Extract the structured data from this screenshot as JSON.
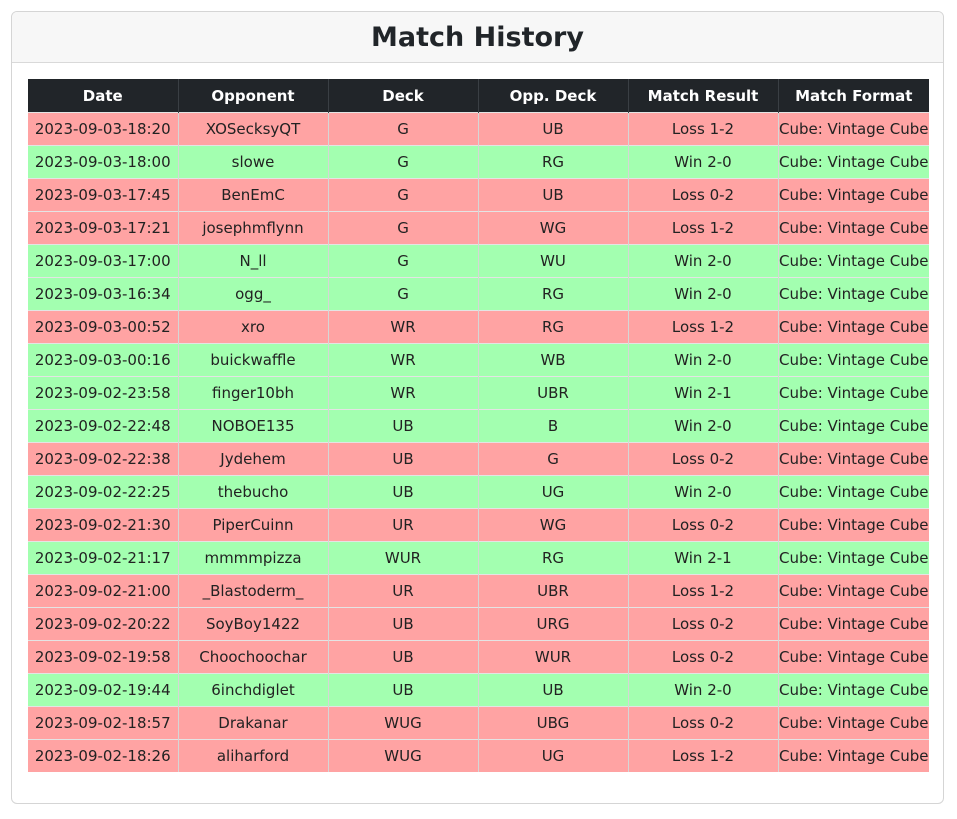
{
  "title": "Match History",
  "colors": {
    "header_bg": "#212529",
    "loss_row": "#ffa3a3",
    "win_row": "#a3ffb0"
  },
  "columns": [
    "Date",
    "Opponent",
    "Deck",
    "Opp. Deck",
    "Match Result",
    "Match Format"
  ],
  "rows": [
    {
      "date": "2023-09-03-18:20",
      "opponent": "XOSecksyQT",
      "deck": "G",
      "opp_deck": "UB",
      "result": "Loss 1-2",
      "format": "Cube: Vintage Cube",
      "outcome": "loss"
    },
    {
      "date": "2023-09-03-18:00",
      "opponent": "slowe",
      "deck": "G",
      "opp_deck": "RG",
      "result": "Win 2-0",
      "format": "Cube: Vintage Cube",
      "outcome": "win"
    },
    {
      "date": "2023-09-03-17:45",
      "opponent": "BenEmC",
      "deck": "G",
      "opp_deck": "UB",
      "result": "Loss 0-2",
      "format": "Cube: Vintage Cube",
      "outcome": "loss"
    },
    {
      "date": "2023-09-03-17:21",
      "opponent": "josephmflynn",
      "deck": "G",
      "opp_deck": "WG",
      "result": "Loss 1-2",
      "format": "Cube: Vintage Cube",
      "outcome": "loss"
    },
    {
      "date": "2023-09-03-17:00",
      "opponent": "N_ll",
      "deck": "G",
      "opp_deck": "WU",
      "result": "Win 2-0",
      "format": "Cube: Vintage Cube",
      "outcome": "win"
    },
    {
      "date": "2023-09-03-16:34",
      "opponent": "ogg_",
      "deck": "G",
      "opp_deck": "RG",
      "result": "Win 2-0",
      "format": "Cube: Vintage Cube",
      "outcome": "win"
    },
    {
      "date": "2023-09-03-00:52",
      "opponent": "xro",
      "deck": "WR",
      "opp_deck": "RG",
      "result": "Loss 1-2",
      "format": "Cube: Vintage Cube",
      "outcome": "loss"
    },
    {
      "date": "2023-09-03-00:16",
      "opponent": "buickwaffle",
      "deck": "WR",
      "opp_deck": "WB",
      "result": "Win 2-0",
      "format": "Cube: Vintage Cube",
      "outcome": "win"
    },
    {
      "date": "2023-09-02-23:58",
      "opponent": "finger10bh",
      "deck": "WR",
      "opp_deck": "UBR",
      "result": "Win 2-1",
      "format": "Cube: Vintage Cube",
      "outcome": "win"
    },
    {
      "date": "2023-09-02-22:48",
      "opponent": "NOBOE135",
      "deck": "UB",
      "opp_deck": "B",
      "result": "Win 2-0",
      "format": "Cube: Vintage Cube",
      "outcome": "win"
    },
    {
      "date": "2023-09-02-22:38",
      "opponent": "Jydehem",
      "deck": "UB",
      "opp_deck": "G",
      "result": "Loss 0-2",
      "format": "Cube: Vintage Cube",
      "outcome": "loss"
    },
    {
      "date": "2023-09-02-22:25",
      "opponent": "thebucho",
      "deck": "UB",
      "opp_deck": "UG",
      "result": "Win 2-0",
      "format": "Cube: Vintage Cube",
      "outcome": "win"
    },
    {
      "date": "2023-09-02-21:30",
      "opponent": "PiperCuinn",
      "deck": "UR",
      "opp_deck": "WG",
      "result": "Loss 0-2",
      "format": "Cube: Vintage Cube",
      "outcome": "loss"
    },
    {
      "date": "2023-09-02-21:17",
      "opponent": "mmmmpizza",
      "deck": "WUR",
      "opp_deck": "RG",
      "result": "Win 2-1",
      "format": "Cube: Vintage Cube",
      "outcome": "win"
    },
    {
      "date": "2023-09-02-21:00",
      "opponent": "_Blastoderm_",
      "deck": "UR",
      "opp_deck": "UBR",
      "result": "Loss 1-2",
      "format": "Cube: Vintage Cube",
      "outcome": "loss"
    },
    {
      "date": "2023-09-02-20:22",
      "opponent": "SoyBoy1422",
      "deck": "UB",
      "opp_deck": "URG",
      "result": "Loss 0-2",
      "format": "Cube: Vintage Cube",
      "outcome": "loss"
    },
    {
      "date": "2023-09-02-19:58",
      "opponent": "Choochoochar",
      "deck": "UB",
      "opp_deck": "WUR",
      "result": "Loss 0-2",
      "format": "Cube: Vintage Cube",
      "outcome": "loss"
    },
    {
      "date": "2023-09-02-19:44",
      "opponent": "6inchdiglet",
      "deck": "UB",
      "opp_deck": "UB",
      "result": "Win 2-0",
      "format": "Cube: Vintage Cube",
      "outcome": "win"
    },
    {
      "date": "2023-09-02-18:57",
      "opponent": "Drakanar",
      "deck": "WUG",
      "opp_deck": "UBG",
      "result": "Loss 0-2",
      "format": "Cube: Vintage Cube",
      "outcome": "loss"
    },
    {
      "date": "2023-09-02-18:26",
      "opponent": "aliharford",
      "deck": "WUG",
      "opp_deck": "UG",
      "result": "Loss 1-2",
      "format": "Cube: Vintage Cube",
      "outcome": "loss"
    }
  ]
}
